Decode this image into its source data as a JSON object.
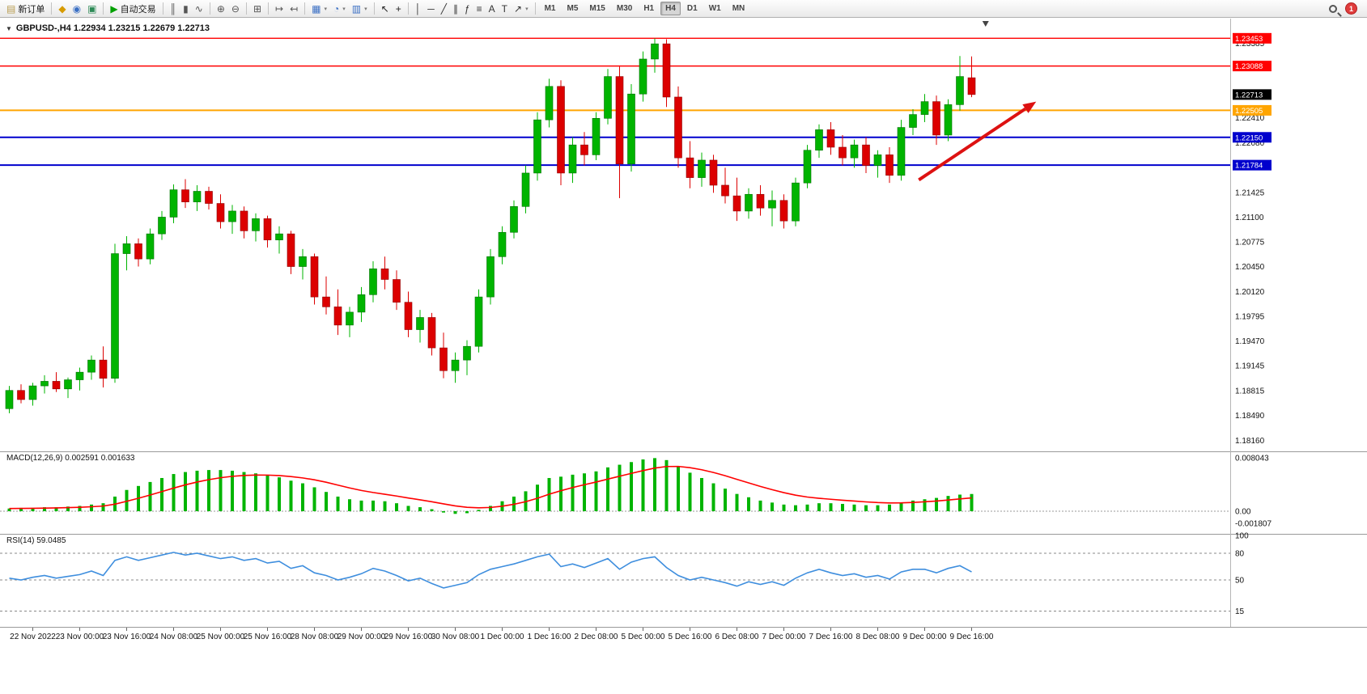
{
  "toolbar": {
    "groups": [
      {
        "items": [
          {
            "name": "new-order-button",
            "icon": "▤",
            "icon_color": "#b89b4e",
            "label": "新订单",
            "dropdown": false
          }
        ]
      },
      {
        "items": [
          {
            "name": "charts-profile-button",
            "icon": "◆",
            "icon_color": "#d79b00"
          },
          {
            "name": "refresh-button",
            "icon": "◉",
            "icon_color": "#3a6fc4"
          },
          {
            "name": "terminal-button",
            "icon": "▣",
            "icon_color": "#2e8b57"
          }
        ]
      },
      {
        "items": [
          {
            "name": "autotrading-button",
            "icon": "▶",
            "icon_color": "#00a000",
            "label": "自动交易"
          }
        ]
      },
      {
        "items": [
          {
            "name": "bar-chart-button",
            "icon": "║",
            "icon_color": "#555555"
          },
          {
            "name": "candlestick-chart-button",
            "icon": "▮",
            "icon_color": "#555555"
          },
          {
            "name": "line-chart-button",
            "icon": "∿",
            "icon_color": "#555555"
          }
        ]
      },
      {
        "items": [
          {
            "name": "zoom-in-button",
            "icon": "⊕",
            "icon_color": "#555555"
          },
          {
            "name": "zoom-out-button",
            "icon": "⊖",
            "icon_color": "#555555"
          }
        ]
      },
      {
        "items": [
          {
            "name": "tile-windows-button",
            "icon": "⊞",
            "icon_color": "#555555"
          }
        ]
      },
      {
        "items": [
          {
            "name": "auto-scroll-button",
            "icon": "↦",
            "icon_color": "#555555"
          },
          {
            "name": "chart-shift-button",
            "icon": "↤",
            "icon_color": "#555555"
          }
        ]
      },
      {
        "items": [
          {
            "name": "new-chart-button",
            "icon": "▦",
            "icon_color": "#3a6fc4",
            "dropdown": true
          },
          {
            "name": "periods-button",
            "icon": "◔",
            "icon_color": "#3a6fc4",
            "dropdown": true
          },
          {
            "name": "templates-button",
            "icon": "▥",
            "icon_color": "#3a6fc4",
            "dropdown": true
          }
        ]
      },
      {
        "items": [
          {
            "name": "cursor-button",
            "icon": "↖",
            "icon_color": "#222222"
          },
          {
            "name": "crosshair-button",
            "icon": "+",
            "icon_color": "#222222"
          }
        ]
      },
      {
        "items": [
          {
            "name": "vertical-line-button",
            "icon": "│",
            "icon_color": "#333333"
          },
          {
            "name": "horizontal-line-button",
            "icon": "─",
            "icon_color": "#333333"
          },
          {
            "name": "trendline-button",
            "icon": "╱",
            "icon_color": "#333333"
          },
          {
            "name": "equidistant-channel-button",
            "icon": "∥",
            "icon_color": "#333333"
          },
          {
            "name": "fibonacci-button",
            "icon": "ƒ",
            "icon_color": "#333333"
          },
          {
            "name": "horizontal-levels-button",
            "icon": "≡",
            "icon_color": "#333333"
          },
          {
            "name": "text-button",
            "icon": "A",
            "icon_color": "#333333"
          },
          {
            "name": "text-label-button",
            "icon": "T",
            "icon_color": "#333333"
          },
          {
            "name": "arrow-tools-button",
            "icon": "↗",
            "icon_color": "#333333",
            "dropdown": true
          }
        ]
      }
    ],
    "timeframes": {
      "items": [
        "M1",
        "M5",
        "M15",
        "M30",
        "H1",
        "H4",
        "D1",
        "W1",
        "MN"
      ],
      "active": "H4"
    },
    "notification_badge": "1"
  },
  "chart": {
    "title_text": "GBPUSD-,H4 1.22934 1.23215 1.22679 1.22713"
  },
  "chart_data": {
    "type": "candlestick",
    "symbol": "GBPUSD-",
    "timeframe": "H4",
    "main": {
      "ylim": [
        1.1804,
        1.2368
      ],
      "axis_labels": [
        "1.23385",
        "1.23060",
        "1.22735",
        "1.22410",
        "1.22080",
        "1.21755",
        "1.21425",
        "1.21100",
        "1.20775",
        "1.20450",
        "1.20120",
        "1.19795",
        "1.19470",
        "1.19145",
        "1.18815",
        "1.18490",
        "1.18160"
      ],
      "current_price": 1.22713,
      "current_price_label": "1.22713",
      "hlines": [
        {
          "price": 1.23453,
          "label": "1.23453",
          "color": "#ff0000",
          "width": 1.4
        },
        {
          "price": 1.23088,
          "label": "1.23088",
          "color": "#ff0000",
          "width": 1.4
        },
        {
          "price": 1.22505,
          "label": "1.22505",
          "color": "#ffa500",
          "width": 2
        },
        {
          "price": 1.2215,
          "label": "1.22150",
          "color": "#0000cd",
          "width": 2
        },
        {
          "price": 1.21784,
          "label": "1.21784",
          "color": "#0000cd",
          "width": 2
        }
      ]
    },
    "candles": [
      [
        1.1858,
        1.1888,
        1.1852,
        1.1882
      ],
      [
        1.1882,
        1.189,
        1.1865,
        1.187
      ],
      [
        1.187,
        1.1892,
        1.1862,
        1.1888
      ],
      [
        1.1888,
        1.1902,
        1.1878,
        1.1894
      ],
      [
        1.1894,
        1.1906,
        1.188,
        1.1884
      ],
      [
        1.1884,
        1.1899,
        1.1872,
        1.1896
      ],
      [
        1.1896,
        1.1912,
        1.1882,
        1.1906
      ],
      [
        1.1906,
        1.1928,
        1.1896,
        1.1922
      ],
      [
        1.1922,
        1.194,
        1.1886,
        1.1898
      ],
      [
        1.1898,
        1.2075,
        1.1892,
        1.2062
      ],
      [
        1.2062,
        1.2085,
        1.204,
        1.2075
      ],
      [
        1.2075,
        1.2082,
        1.2045,
        1.2055
      ],
      [
        1.2055,
        1.2095,
        1.2048,
        1.2088
      ],
      [
        1.2088,
        1.2118,
        1.208,
        1.211
      ],
      [
        1.211,
        1.2153,
        1.2102,
        1.2146
      ],
      [
        1.2146,
        1.216,
        1.2122,
        1.213
      ],
      [
        1.213,
        1.2152,
        1.2118,
        1.2144
      ],
      [
        1.2144,
        1.215,
        1.212,
        1.2128
      ],
      [
        1.2128,
        1.214,
        1.2095,
        1.2104
      ],
      [
        1.2104,
        1.2126,
        1.2088,
        1.2118
      ],
      [
        1.2118,
        1.2124,
        1.2082,
        1.2092
      ],
      [
        1.2092,
        1.2115,
        1.2078,
        1.2108
      ],
      [
        1.2108,
        1.2112,
        1.207,
        1.208
      ],
      [
        1.208,
        1.2098,
        1.2062,
        1.2088
      ],
      [
        1.2088,
        1.2092,
        1.2035,
        1.2045
      ],
      [
        1.2045,
        1.2068,
        1.2028,
        1.2058
      ],
      [
        1.2058,
        1.2062,
        1.1995,
        1.2005
      ],
      [
        1.2005,
        1.2032,
        1.1982,
        1.1992
      ],
      [
        1.1992,
        1.2015,
        1.1955,
        1.1968
      ],
      [
        1.1968,
        1.1992,
        1.1952,
        1.1985
      ],
      [
        1.1985,
        1.2018,
        1.1972,
        1.2008
      ],
      [
        1.2008,
        1.2052,
        1.1998,
        1.2042
      ],
      [
        1.2042,
        1.2058,
        1.2015,
        1.2028
      ],
      [
        1.2028,
        1.204,
        1.1988,
        1.1998
      ],
      [
        1.1998,
        1.2012,
        1.1952,
        1.1962
      ],
      [
        1.1962,
        1.1988,
        1.1945,
        1.1978
      ],
      [
        1.1978,
        1.1984,
        1.1928,
        1.1938
      ],
      [
        1.1938,
        1.1958,
        1.1898,
        1.1908
      ],
      [
        1.1908,
        1.1932,
        1.1892,
        1.1922
      ],
      [
        1.1922,
        1.1948,
        1.1902,
        1.194
      ],
      [
        1.194,
        1.2015,
        1.1932,
        1.2005
      ],
      [
        1.2005,
        1.2068,
        1.1995,
        1.2058
      ],
      [
        1.2058,
        1.2098,
        1.2048,
        1.209
      ],
      [
        1.209,
        1.2132,
        1.2082,
        1.2124
      ],
      [
        1.2124,
        1.2178,
        1.2115,
        1.2168
      ],
      [
        1.2168,
        1.2248,
        1.2158,
        1.2238
      ],
      [
        1.2238,
        1.2292,
        1.2228,
        1.2282
      ],
      [
        1.2282,
        1.229,
        1.2152,
        1.2168
      ],
      [
        1.2168,
        1.2215,
        1.2155,
        1.2205
      ],
      [
        1.2205,
        1.2222,
        1.2178,
        1.2192
      ],
      [
        1.2192,
        1.2248,
        1.2185,
        1.224
      ],
      [
        1.224,
        1.2305,
        1.2232,
        1.2295
      ],
      [
        1.2295,
        1.2308,
        1.2135,
        1.218
      ],
      [
        1.218,
        1.2285,
        1.217,
        1.2272
      ],
      [
        1.2272,
        1.2328,
        1.2262,
        1.2318
      ],
      [
        1.2318,
        1.2345,
        1.23,
        1.2338
      ],
      [
        1.2338,
        1.2344,
        1.2255,
        1.2268
      ],
      [
        1.2268,
        1.2282,
        1.2175,
        1.2188
      ],
      [
        1.2188,
        1.221,
        1.2148,
        1.2162
      ],
      [
        1.2162,
        1.2195,
        1.215,
        1.2185
      ],
      [
        1.2185,
        1.2192,
        1.2142,
        1.2152
      ],
      [
        1.2152,
        1.2175,
        1.2128,
        1.2138
      ],
      [
        1.2138,
        1.2162,
        1.2105,
        1.2118
      ],
      [
        1.2118,
        1.2148,
        1.2108,
        1.214
      ],
      [
        1.214,
        1.2152,
        1.2112,
        1.2122
      ],
      [
        1.2122,
        1.2145,
        1.2098,
        1.2132
      ],
      [
        1.2132,
        1.214,
        1.2095,
        1.2105
      ],
      [
        1.2105,
        1.2162,
        1.2098,
        1.2155
      ],
      [
        1.2155,
        1.2205,
        1.2148,
        1.2198
      ],
      [
        1.2198,
        1.2232,
        1.2188,
        1.2225
      ],
      [
        1.2225,
        1.2235,
        1.2192,
        1.2202
      ],
      [
        1.2202,
        1.2218,
        1.2178,
        1.2188
      ],
      [
        1.2188,
        1.2212,
        1.2175,
        1.2205
      ],
      [
        1.2205,
        1.2215,
        1.2168,
        1.2178
      ],
      [
        1.2178,
        1.2198,
        1.2162,
        1.2192
      ],
      [
        1.2192,
        1.2202,
        1.2155,
        1.2165
      ],
      [
        1.2165,
        1.2238,
        1.2158,
        1.2228
      ],
      [
        1.2228,
        1.2252,
        1.2218,
        1.2245
      ],
      [
        1.2245,
        1.2272,
        1.2235,
        1.2262
      ],
      [
        1.2262,
        1.227,
        1.2205,
        1.2218
      ],
      [
        1.2218,
        1.2265,
        1.221,
        1.2258
      ],
      [
        1.2258,
        1.2322,
        1.225,
        1.2295
      ],
      [
        1.22934,
        1.23215,
        1.22679,
        1.22713
      ]
    ],
    "time_labels": [
      "22 Nov 2022",
      "23 Nov 00:00",
      "23 Nov 16:00",
      "24 Nov 08:00",
      "25 Nov 00:00",
      "25 Nov 16:00",
      "28 Nov 08:00",
      "29 Nov 00:00",
      "29 Nov 16:00",
      "30 Nov 08:00",
      "1 Dec 00:00",
      "1 Dec 16:00",
      "2 Dec 08:00",
      "5 Dec 00:00",
      "5 Dec 16:00",
      "6 Dec 08:00",
      "7 Dec 00:00",
      "7 Dec 16:00",
      "8 Dec 08:00",
      "9 Dec 00:00",
      "9 Dec 16:00"
    ],
    "macd": {
      "label": "MACD(12,26,9) 0.002591 0.001633",
      "ylim": [
        -0.001807,
        0.008043
      ],
      "axis_labels": [
        "0.008043",
        "0.00",
        "-0.001807"
      ],
      "values": [
        0.0004,
        0.0005,
        0.0005,
        0.0006,
        0.0006,
        0.0007,
        0.0008,
        0.001,
        0.0012,
        0.0022,
        0.0032,
        0.0038,
        0.0044,
        0.005,
        0.0056,
        0.0059,
        0.0061,
        0.0062,
        0.0062,
        0.0061,
        0.0059,
        0.0057,
        0.0054,
        0.0051,
        0.0046,
        0.0042,
        0.0036,
        0.0029,
        0.0022,
        0.0018,
        0.0016,
        0.0016,
        0.0015,
        0.0012,
        0.0008,
        0.0006,
        0.0003,
        -0.0002,
        -0.0004,
        -0.0003,
        0.0002,
        0.0008,
        0.0015,
        0.0022,
        0.003,
        0.004,
        0.005,
        0.0052,
        0.0055,
        0.0057,
        0.006,
        0.0066,
        0.007,
        0.0074,
        0.0078,
        0.008,
        0.0077,
        0.0068,
        0.0058,
        0.005,
        0.0042,
        0.0034,
        0.0026,
        0.0021,
        0.0016,
        0.0013,
        0.001,
        0.0009,
        0.001,
        0.0012,
        0.0012,
        0.0011,
        0.001,
        0.0009,
        0.0009,
        0.001,
        0.0013,
        0.0016,
        0.0018,
        0.002,
        0.0023,
        0.0025,
        0.002591
      ]
    },
    "rsi": {
      "label": "RSI(14) 59.0485",
      "levels": [
        80,
        50,
        15
      ],
      "axis_labels": [
        "100",
        "80",
        "50",
        "15"
      ],
      "values": [
        52,
        50,
        53,
        55,
        52,
        54,
        56,
        60,
        55,
        72,
        76,
        72,
        75,
        78,
        81,
        78,
        80,
        77,
        74,
        76,
        72,
        74,
        69,
        71,
        63,
        66,
        58,
        55,
        50,
        53,
        57,
        63,
        60,
        55,
        49,
        52,
        46,
        41,
        44,
        47,
        56,
        62,
        65,
        68,
        72,
        76,
        79,
        65,
        68,
        64,
        69,
        74,
        62,
        70,
        74,
        76,
        64,
        55,
        50,
        53,
        50,
        47,
        43,
        48,
        45,
        48,
        44,
        52,
        58,
        62,
        58,
        55,
        57,
        53,
        55,
        51,
        59,
        62,
        62,
        58,
        63,
        66,
        59.05
      ]
    },
    "annotations": [
      {
        "type": "arrow",
        "from": {
          "bar": 77.5,
          "price": 1.2159
        },
        "to": {
          "bar": 87.5,
          "price": 1.2262
        },
        "color": "#dd1111"
      }
    ],
    "colors": {
      "bull": "#00b400",
      "bear": "#dc0000",
      "macd_hist": "#00b400",
      "macd_signal": "#ff0000",
      "rsi": "#3e8ede",
      "current_price_box": "#000000"
    }
  }
}
